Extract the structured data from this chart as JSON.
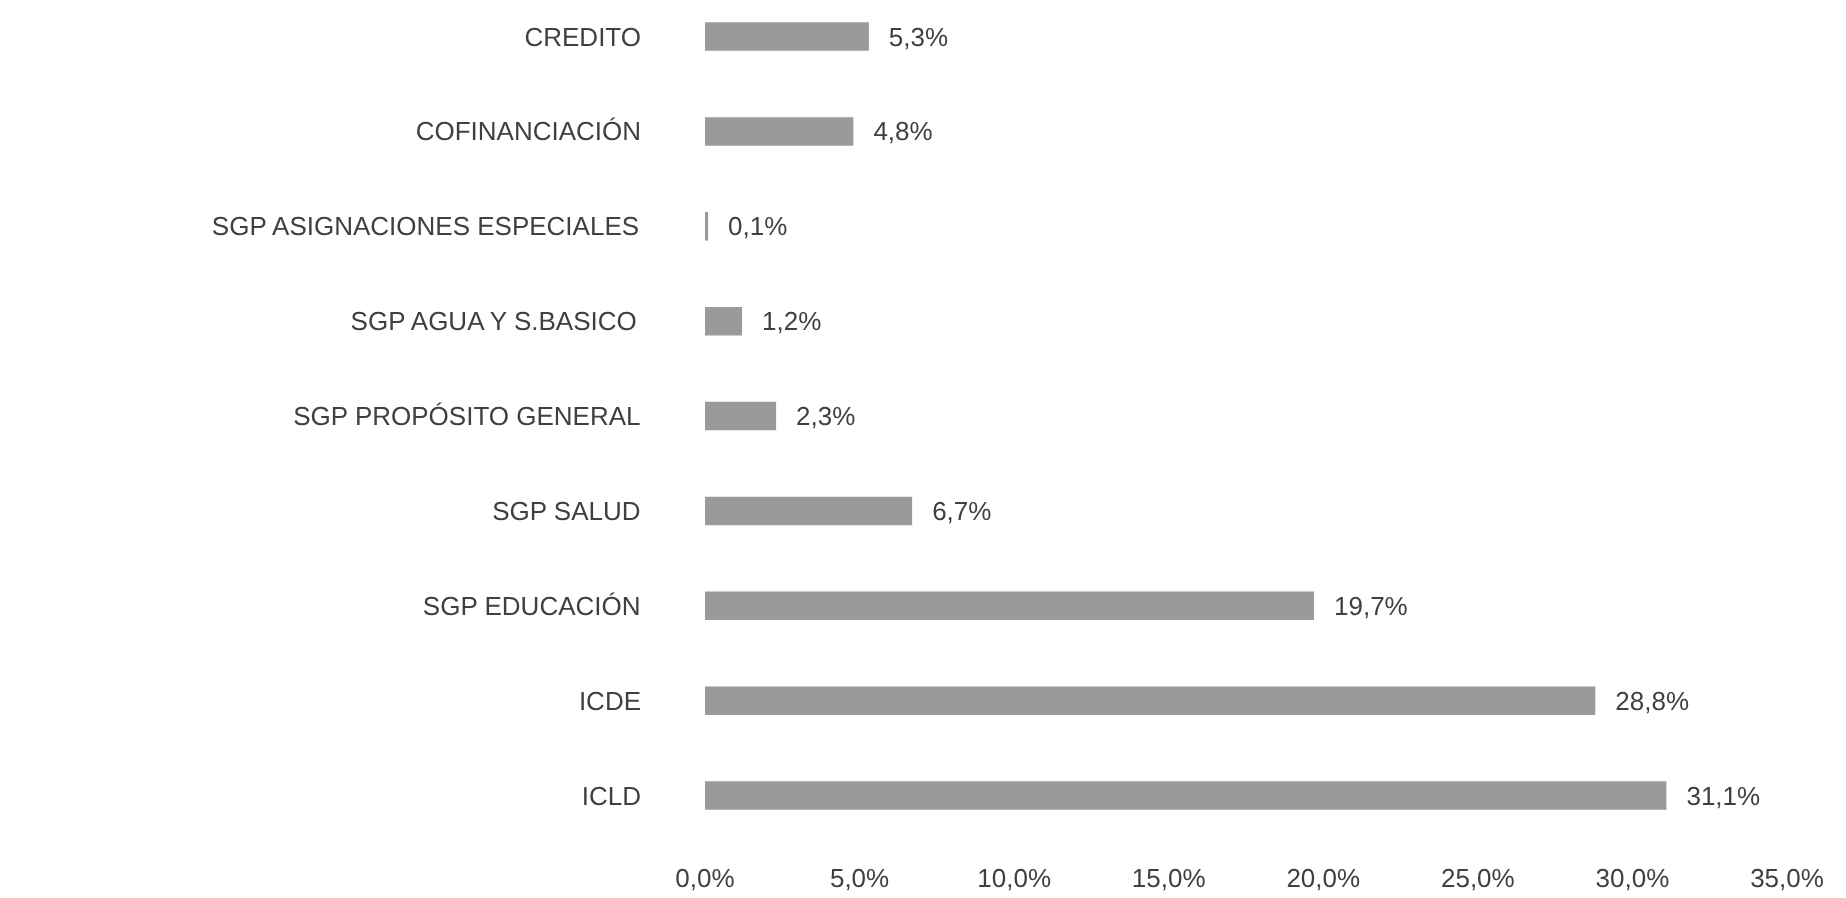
{
  "chart_data": {
    "type": "bar",
    "orientation": "horizontal",
    "categories": [
      "CREDITO",
      "COFINANCIACIÓN",
      "SGP ASIGNACIONES ESPECIALES",
      "SGP AGUA Y S.BASICO",
      "SGP PROPÓSITO GENERAL",
      "SGP SALUD",
      "SGP EDUCACIÓN",
      "ICDE",
      "ICLD"
    ],
    "values": [
      5.3,
      4.8,
      0.1,
      1.2,
      2.3,
      6.7,
      19.7,
      28.8,
      31.1
    ],
    "value_labels": [
      "5,3%",
      "4,8%",
      "0,1%",
      "1,2%",
      "2,3%",
      "6,7%",
      "19,7%",
      "28,8%",
      "31,1%"
    ],
    "color": "#9a9a9a",
    "xlim": [
      0,
      35
    ],
    "xticks": [
      {
        "value": 0,
        "label": "0,0%"
      },
      {
        "value": 5,
        "label": "5,0%"
      },
      {
        "value": 10,
        "label": "10,0%"
      },
      {
        "value": 15,
        "label": "15,0%"
      },
      {
        "value": 20,
        "label": "20,0%"
      },
      {
        "value": 25,
        "label": "25,0%"
      },
      {
        "value": 30,
        "label": "30,0%"
      },
      {
        "value": 35,
        "label": "35,0%"
      }
    ]
  }
}
